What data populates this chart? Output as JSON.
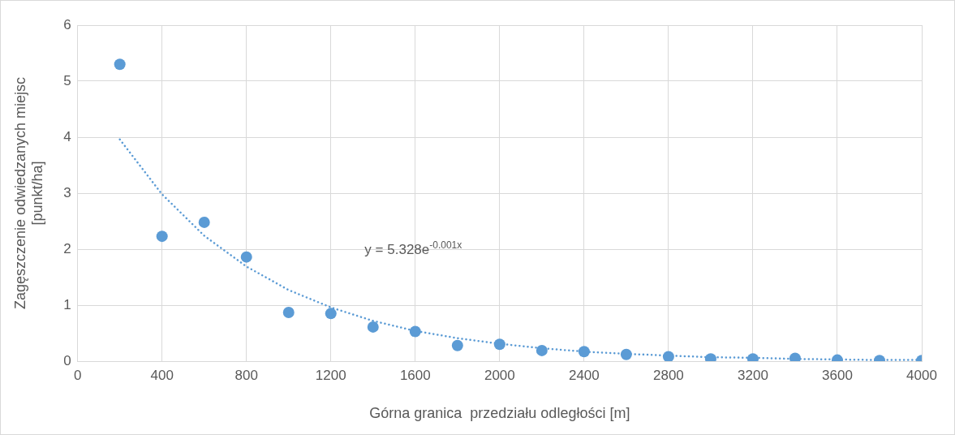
{
  "chart_data": {
    "type": "scatter",
    "xlabel": "Górna granica  przedziału odległości [m]",
    "ylabel": "Zagęszczenie odwiedzanych miejsc [punkt/ha]",
    "xlim": [
      0,
      4000
    ],
    "xticks": [
      0,
      400,
      800,
      1200,
      1600,
      2000,
      2400,
      2800,
      3200,
      3600,
      4000
    ],
    "ylim": [
      0,
      6
    ],
    "yticks": [
      0,
      1,
      2,
      3,
      4,
      5,
      6
    ],
    "grid": true,
    "legend": false,
    "marker": "circle",
    "series": [
      {
        "color": "#5b9bd5",
        "x": [
          200,
          400,
          600,
          800,
          1000,
          1200,
          1400,
          1600,
          1800,
          2000,
          2200,
          2400,
          2600,
          2800,
          3000,
          3200,
          3400,
          3600,
          3800,
          4000
        ],
        "values": [
          5.3,
          2.23,
          2.48,
          1.86,
          0.87,
          0.85,
          0.61,
          0.53,
          0.28,
          0.3,
          0.19,
          0.17,
          0.12,
          0.08,
          0.04,
          0.04,
          0.05,
          0.02,
          0.01,
          0.01
        ]
      },
      {
        "type": "line",
        "color": "#5b9bd5",
        "line_style": "dotted",
        "marker": "none",
        "x": [
          200,
          400,
          600,
          800,
          1000,
          1200,
          1400,
          1600,
          1800,
          2000,
          2200,
          2400,
          2600,
          2800,
          3000,
          3200,
          3400,
          3600,
          3800,
          4000
        ],
        "values": [
          3.96,
          2.98,
          2.24,
          1.69,
          1.27,
          0.96,
          0.72,
          0.54,
          0.41,
          0.31,
          0.23,
          0.17,
          0.13,
          0.1,
          0.07,
          0.06,
          0.04,
          0.03,
          0.02,
          0.02
        ]
      }
    ],
    "annotations": [
      "y = 5.328e$^{-0.001x}$"
    ]
  }
}
